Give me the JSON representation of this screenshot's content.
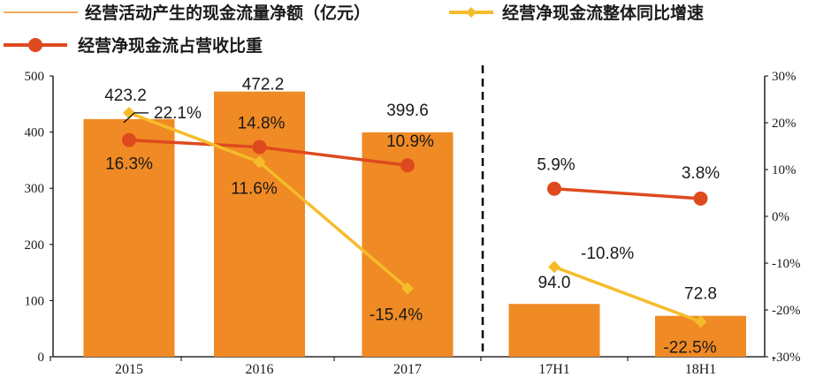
{
  "colors": {
    "bar": "#F08A24",
    "yoy_line": "#F5BC2A",
    "ratio_line": "#DE4A1E",
    "divider": "#000000"
  },
  "legend": {
    "items": [
      {
        "label": "经营活动产生的现金流量净额（亿元）",
        "marker": "thin-line",
        "series": "net_cash_flow"
      },
      {
        "label": "经营净现金流整体同比增速",
        "marker": "line-diamond",
        "series": "yoy_growth"
      },
      {
        "label": "经营净现金流占营收比重",
        "marker": "line-circle",
        "series": "share_of_revenue"
      }
    ]
  },
  "chart_data": {
    "type": "bar",
    "categories": [
      "2015",
      "2016",
      "2017",
      "17H1",
      "18H1"
    ],
    "series": [
      {
        "name": "经营活动产生的现金流量净额（亿元）",
        "type": "bar",
        "axis": "left",
        "values": [
          423.2,
          472.2,
          399.6,
          94.0,
          72.8
        ],
        "labels": [
          "423.2",
          "472.2",
          "399.6",
          "94.0",
          "72.8"
        ]
      },
      {
        "name": "经营净现金流整体同比增速",
        "type": "line",
        "marker": "diamond",
        "axis": "right",
        "values": [
          22.1,
          11.6,
          -15.4,
          -10.8,
          -22.5
        ],
        "labels": [
          "22.1%",
          "11.6%",
          "-15.4%",
          "-10.8%",
          "-22.5%"
        ],
        "segments": [
          [
            0,
            1,
            2
          ],
          [
            3,
            4
          ]
        ]
      },
      {
        "name": "经营净现金流占营收比重",
        "type": "line",
        "marker": "circle",
        "axis": "right",
        "values": [
          16.3,
          14.8,
          10.9,
          5.9,
          3.8
        ],
        "labels": [
          "16.3%",
          "14.8%",
          "10.9%",
          "5.9%",
          "3.8%"
        ],
        "segments": [
          [
            0,
            1,
            2
          ],
          [
            3,
            4
          ]
        ]
      }
    ],
    "left_axis": {
      "min": 0,
      "max": 500,
      "ticks": [
        "0",
        "100",
        "200",
        "300",
        "400",
        "500"
      ]
    },
    "right_axis": {
      "min": -30,
      "max": 30,
      "ticks": [
        "-30%",
        "-20%",
        "-10%",
        "0%",
        "10%",
        "20%",
        "30%"
      ]
    },
    "divider_after_category": "2017",
    "grid": false,
    "legend_position": "top"
  }
}
